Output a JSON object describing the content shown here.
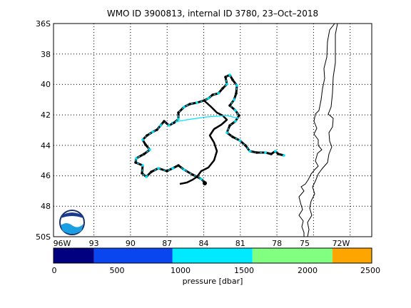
{
  "title": "WMO ID 3900813, internal ID 3780, 23–Oct–2018",
  "lat_labels": [
    "36S",
    "38",
    "40",
    "42",
    "44",
    "46",
    "48",
    "50S"
  ],
  "lon_labels": [
    "96W",
    "93",
    "90",
    "87",
    "84",
    "81",
    "78",
    "75",
    "72W"
  ],
  "colorbar": {
    "label": "pressure [dbar]",
    "tick_labels": [
      "0",
      "500",
      "1000",
      "1500",
      "2000",
      "2500"
    ],
    "segments": [
      {
        "color": "#000080"
      },
      {
        "color": "#0a46f0"
      },
      {
        "color": "#00eaff"
      },
      {
        "color": "#80ff80"
      },
      {
        "color": "#ffa500"
      }
    ]
  },
  "logo": {
    "text": "NOAA",
    "icon": "noaa-logo-icon"
  },
  "colors": {
    "track_dark": "#000000",
    "track_light": "#00e5ff",
    "coast": "#000000",
    "grid": "#000000"
  }
}
